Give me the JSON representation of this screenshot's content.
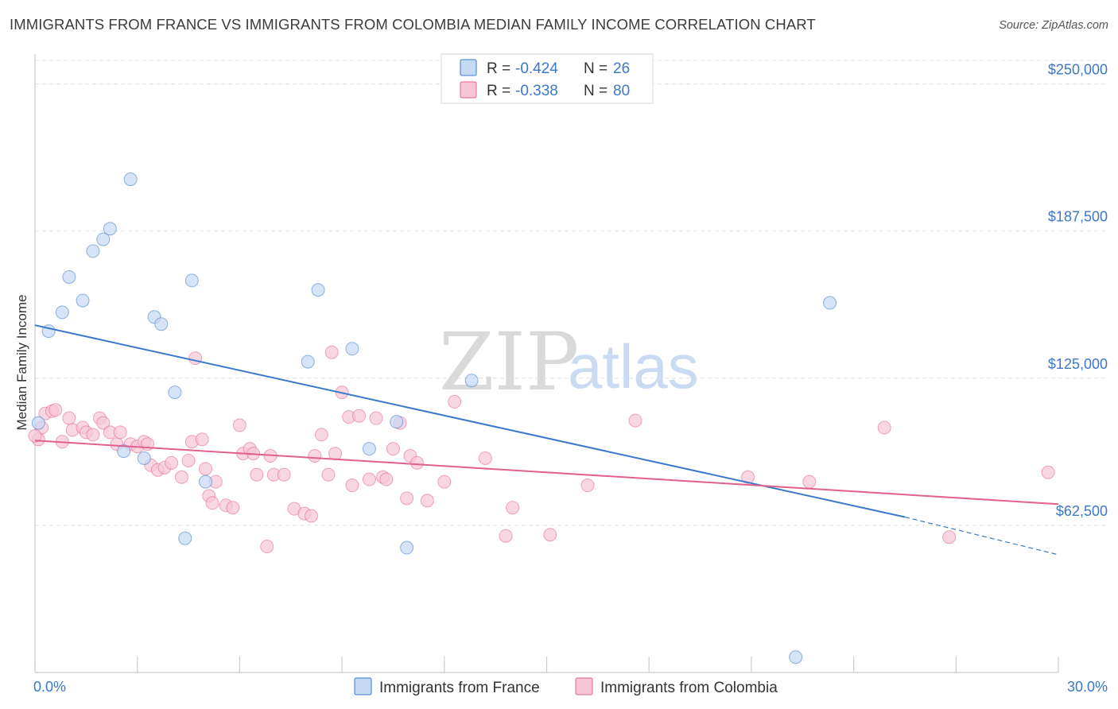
{
  "title": "IMMIGRANTS FROM FRANCE VS IMMIGRANTS FROM COLOMBIA MEDIAN FAMILY INCOME CORRELATION CHART",
  "source": "Source: ZipAtlas.com",
  "watermark": {
    "zip": "ZIP",
    "atlas": "atlas"
  },
  "legend": {
    "r_label": "R =",
    "n_label": "N =",
    "rows": [
      {
        "r": "-0.424",
        "n": "26"
      },
      {
        "r": "-0.338",
        "n": "80"
      }
    ]
  },
  "bottom_legend": [
    "Immigrants from France",
    "Immigrants from Colombia"
  ],
  "chart_data": {
    "type": "scatter",
    "title": "IMMIGRANTS FROM FRANCE VS IMMIGRANTS FROM COLOMBIA MEDIAN FAMILY INCOME CORRELATION CHART",
    "xlabel": "",
    "ylabel": "Median Family Income",
    "xlim": [
      0,
      30
    ],
    "ylim": [
      0,
      260000
    ],
    "x_ticks": [
      {
        "value": 0,
        "label": "0.0%"
      },
      {
        "value": 30,
        "label": "30.0%"
      }
    ],
    "y_ticks": [
      {
        "value": 62500,
        "label": "$62,500"
      },
      {
        "value": 125000,
        "label": "$125,000"
      },
      {
        "value": 187500,
        "label": "$187,500"
      },
      {
        "value": 250000,
        "label": "$250,000"
      }
    ],
    "colors": {
      "france": "#3b78c9",
      "france_fill": "#c6d9f3",
      "colombia": "#e0608e",
      "colombia_fill": "#f7c6d6"
    },
    "series": [
      {
        "name": "Immigrants from France",
        "r": -0.424,
        "n": 26,
        "trend": {
          "x0": 0,
          "y0": 147500,
          "x1": 25.5,
          "y1": 66000,
          "dash_to_x": 30,
          "dash_to_y": 50000
        },
        "points": [
          [
            0.1,
            106000
          ],
          [
            0.4,
            145000
          ],
          [
            0.8,
            153000
          ],
          [
            1.0,
            168000
          ],
          [
            1.4,
            158000
          ],
          [
            1.7,
            179000
          ],
          [
            2.0,
            184000
          ],
          [
            2.2,
            188500
          ],
          [
            2.6,
            94000
          ],
          [
            2.8,
            209500
          ],
          [
            3.2,
            91000
          ],
          [
            3.5,
            151000
          ],
          [
            3.7,
            148000
          ],
          [
            4.1,
            119000
          ],
          [
            4.4,
            57000
          ],
          [
            4.6,
            166500
          ],
          [
            5.0,
            81000
          ],
          [
            8.0,
            132000
          ],
          [
            8.3,
            162500
          ],
          [
            9.3,
            137500
          ],
          [
            9.8,
            95000
          ],
          [
            10.6,
            106500
          ],
          [
            10.9,
            53000
          ],
          [
            12.8,
            124000
          ],
          [
            23.3,
            157000
          ],
          [
            22.3,
            6500
          ]
        ]
      },
      {
        "name": "Immigrants from Colombia",
        "r": -0.338,
        "n": 80,
        "trend": {
          "x0": 0,
          "y0": 98500,
          "x1": 30,
          "y1": 71500
        },
        "points": [
          [
            0.1,
            99000
          ],
          [
            0.2,
            104000
          ],
          [
            0.3,
            110000
          ],
          [
            0.5,
            111000
          ],
          [
            0.6,
            111500
          ],
          [
            0.8,
            98000
          ],
          [
            1.0,
            108000
          ],
          [
            1.1,
            103000
          ],
          [
            1.4,
            104000
          ],
          [
            1.5,
            102000
          ],
          [
            1.7,
            101000
          ],
          [
            1.9,
            108000
          ],
          [
            2.0,
            106000
          ],
          [
            2.2,
            102000
          ],
          [
            2.4,
            97000
          ],
          [
            2.5,
            102000
          ],
          [
            2.8,
            97000
          ],
          [
            3.0,
            96000
          ],
          [
            3.2,
            98000
          ],
          [
            3.3,
            97000
          ],
          [
            3.4,
            88000
          ],
          [
            3.6,
            86000
          ],
          [
            3.8,
            87000
          ],
          [
            4.0,
            89000
          ],
          [
            4.3,
            83000
          ],
          [
            4.5,
            90000
          ],
          [
            4.6,
            98000
          ],
          [
            4.7,
            133500
          ],
          [
            4.9,
            99000
          ],
          [
            5.0,
            86500
          ],
          [
            5.1,
            75000
          ],
          [
            5.2,
            72000
          ],
          [
            5.3,
            81000
          ],
          [
            5.6,
            71000
          ],
          [
            5.8,
            70000
          ],
          [
            6.0,
            105000
          ],
          [
            6.1,
            93000
          ],
          [
            6.3,
            95000
          ],
          [
            6.4,
            93000
          ],
          [
            6.5,
            84000
          ],
          [
            6.8,
            53500
          ],
          [
            6.9,
            92000
          ],
          [
            7.0,
            84000
          ],
          [
            7.3,
            84000
          ],
          [
            7.6,
            69500
          ],
          [
            7.9,
            67500
          ],
          [
            8.1,
            66500
          ],
          [
            8.2,
            92000
          ],
          [
            8.4,
            101000
          ],
          [
            8.6,
            84000
          ],
          [
            8.7,
            136000
          ],
          [
            8.8,
            93000
          ],
          [
            9.0,
            119000
          ],
          [
            9.2,
            108500
          ],
          [
            9.3,
            79500
          ],
          [
            9.5,
            109000
          ],
          [
            9.8,
            82000
          ],
          [
            10.0,
            108000
          ],
          [
            10.2,
            83000
          ],
          [
            10.3,
            82000
          ],
          [
            10.5,
            95000
          ],
          [
            10.7,
            106000
          ],
          [
            10.9,
            74000
          ],
          [
            11.0,
            92000
          ],
          [
            11.2,
            89000
          ],
          [
            11.5,
            73000
          ],
          [
            12.0,
            81000
          ],
          [
            12.3,
            115000
          ],
          [
            13.2,
            91000
          ],
          [
            13.8,
            58000
          ],
          [
            14.0,
            70000
          ],
          [
            15.1,
            58500
          ],
          [
            16.2,
            79500
          ],
          [
            17.6,
            107000
          ],
          [
            20.9,
            83000
          ],
          [
            22.7,
            81000
          ],
          [
            24.9,
            104000
          ],
          [
            26.8,
            57500
          ],
          [
            29.7,
            85000
          ],
          [
            0.0,
            100500
          ]
        ]
      }
    ]
  }
}
